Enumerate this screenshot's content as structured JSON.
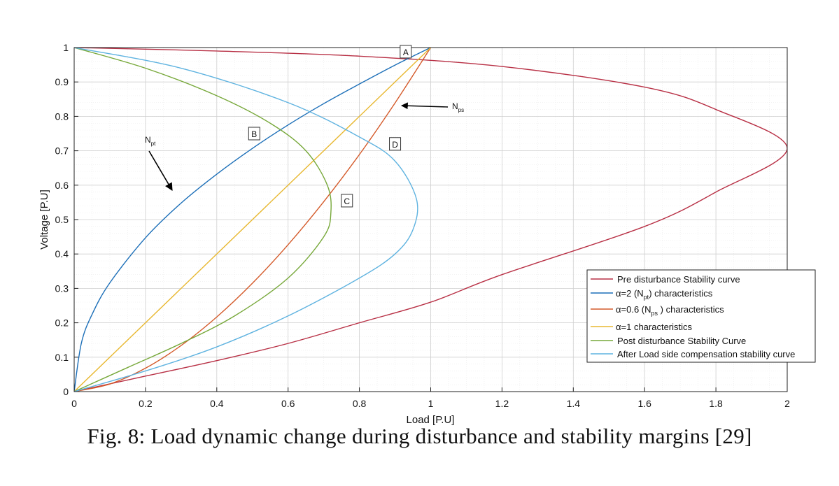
{
  "caption": "Fig. 8: Load dynamic change during disturbance and stability margins [29]",
  "chart_data": {
    "type": "line",
    "xlabel": "Load [P.U]",
    "ylabel": "Voltage [P.U]",
    "xlim": [
      0,
      2
    ],
    "ylim": [
      0,
      1
    ],
    "xticks": [
      0,
      0.2,
      0.4,
      0.6,
      0.8,
      1,
      1.2,
      1.4,
      1.6,
      1.8,
      2
    ],
    "yticks": [
      0,
      0.1,
      0.2,
      0.3,
      0.4,
      0.5,
      0.6,
      0.7,
      0.8,
      0.9,
      1
    ],
    "grid": true,
    "minor_grid": true,
    "legend_position": "bottom-right",
    "series": [
      {
        "name": "Pre disturbance Stability curve",
        "color": "#b83045",
        "x": [
          0,
          0.4,
          0.8,
          1.2,
          1.6,
          1.8,
          2.0,
          1.8,
          1.6,
          1.2,
          1.0,
          0.8,
          0.6,
          0.4,
          0.2,
          0
        ],
        "y": [
          1.0,
          0.99,
          0.975,
          0.945,
          0.885,
          0.82,
          0.707,
          0.58,
          0.48,
          0.34,
          0.26,
          0.2,
          0.14,
          0.09,
          0.045,
          0
        ]
      },
      {
        "name": "α=2 (N_pt) characteristics",
        "color": "#1c6fb8",
        "x": [
          0,
          0.02,
          0.05,
          0.1,
          0.2,
          0.3,
          0.4,
          0.5,
          0.6,
          0.7,
          0.8,
          0.9,
          1.0
        ],
        "y": [
          0,
          0.14,
          0.224,
          0.316,
          0.447,
          0.548,
          0.632,
          0.707,
          0.775,
          0.837,
          0.894,
          0.949,
          1.0
        ]
      },
      {
        "name": "α=0.6 (N_ps) characteristics",
        "color": "#d45a2a",
        "x": [
          0,
          0.1,
          0.2,
          0.3,
          0.4,
          0.5,
          0.6,
          0.7,
          0.8,
          0.9,
          1.0
        ],
        "y": [
          0,
          0.022,
          0.068,
          0.134,
          0.217,
          0.315,
          0.427,
          0.552,
          0.689,
          0.839,
          1.0
        ]
      },
      {
        "name": "α=1 characteristics",
        "color": "#e8b830",
        "x": [
          0,
          1.0
        ],
        "y": [
          0,
          1.0
        ]
      },
      {
        "name": "Post disturbance Stability Curve",
        "color": "#77a83a",
        "x": [
          0,
          0.2,
          0.4,
          0.55,
          0.65,
          0.71,
          0.72,
          0.7,
          0.6,
          0.45,
          0.3,
          0.15,
          0
        ],
        "y": [
          1.0,
          0.94,
          0.86,
          0.78,
          0.7,
          0.6,
          0.52,
          0.45,
          0.33,
          0.22,
          0.14,
          0.07,
          0
        ]
      },
      {
        "name": "After Load side compensation stability curve",
        "color": "#5fb3e0",
        "x": [
          0,
          0.3,
          0.6,
          0.8,
          0.9,
          0.96,
          0.95,
          0.9,
          0.8,
          0.6,
          0.4,
          0.2,
          0
        ],
        "y": [
          1.0,
          0.94,
          0.84,
          0.74,
          0.67,
          0.56,
          0.47,
          0.4,
          0.33,
          0.22,
          0.13,
          0.06,
          0
        ]
      }
    ],
    "legend": [
      "Pre disturbance Stability curve",
      "α=2 (N",
      "α=0.6  (N",
      "α=1 characteristics",
      "Post  disturbance Stability Curve",
      "After Load side compensation stability curve"
    ],
    "legend_extra": {
      "npt_sub": "pt",
      "npt_tail": ") characteristics",
      "nps_sub": "ps",
      "nps_tail": " ) characteristics"
    },
    "annotations": [
      {
        "label": "A",
        "x": 0.93,
        "y": 0.988
      },
      {
        "label": "B",
        "x": 0.505,
        "y": 0.75
      },
      {
        "label": "C",
        "x": 0.765,
        "y": 0.555
      },
      {
        "label": "D",
        "x": 0.9,
        "y": 0.72
      }
    ],
    "arrow_labels": {
      "npt": {
        "main": "N",
        "sub": "pt"
      },
      "nps": {
        "main": "N",
        "sub": "ps"
      }
    }
  }
}
